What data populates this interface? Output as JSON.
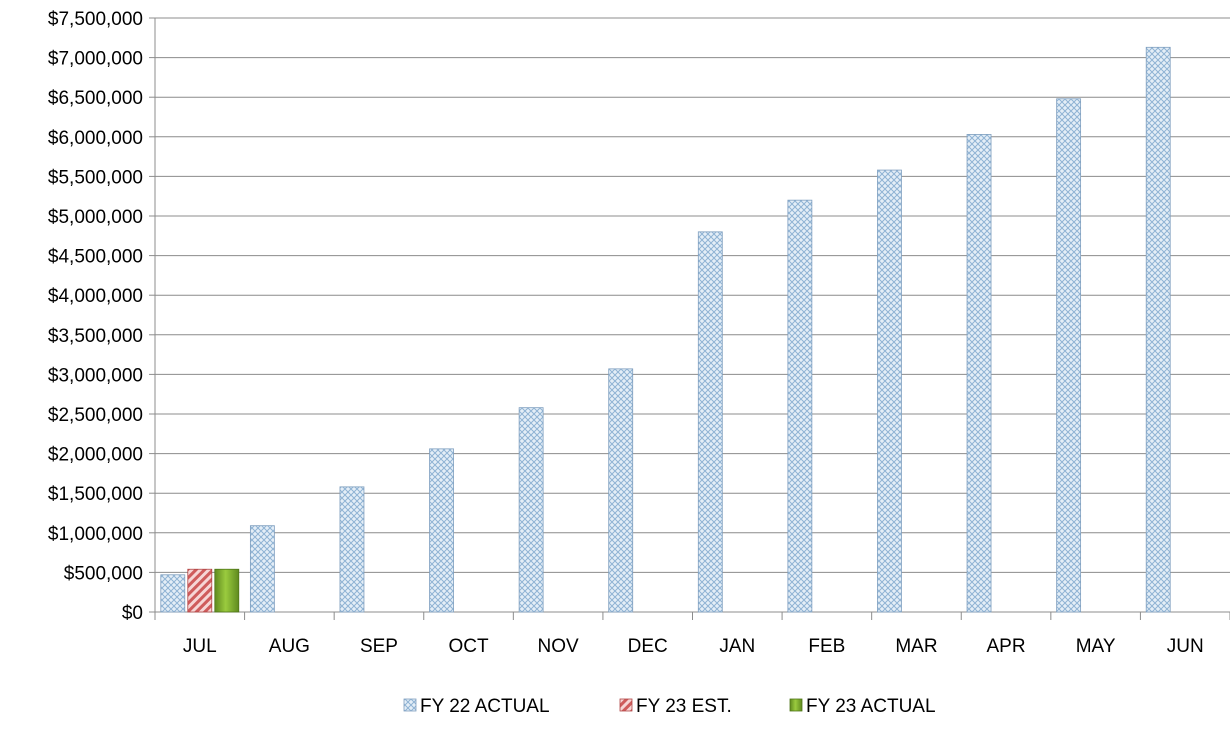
{
  "chart_data": {
    "type": "bar",
    "title": "",
    "xlabel": "",
    "ylabel": "",
    "ylim": [
      0,
      7500000
    ],
    "y_tick_step": 500000,
    "y_ticks": [
      "$0",
      "$500,000",
      "$1,000,000",
      "$1,500,000",
      "$2,000,000",
      "$2,500,000",
      "$3,000,000",
      "$3,500,000",
      "$4,000,000",
      "$4,500,000",
      "$5,000,000",
      "$5,500,000",
      "$6,000,000",
      "$6,500,000",
      "$7,000,000",
      "$7,500,000"
    ],
    "categories": [
      "JUL",
      "AUG",
      "SEP",
      "OCT",
      "NOV",
      "DEC",
      "JAN",
      "FEB",
      "MAR",
      "APR",
      "MAY",
      "JUN"
    ],
    "grid": true,
    "legend_position": "bottom",
    "series": [
      {
        "name": "FY 22 ACTUAL",
        "color": "#c5d9ea",
        "pattern": "crosshatch",
        "values": [
          470000,
          1090000,
          1580000,
          2060000,
          2580000,
          3070000,
          4800000,
          5200000,
          5580000,
          6030000,
          6480000,
          7130000
        ]
      },
      {
        "name": "FY 23 EST.",
        "color": "#d46a6a",
        "pattern": "diagonal",
        "values": [
          540000,
          null,
          null,
          null,
          null,
          null,
          null,
          null,
          null,
          null,
          null,
          null
        ]
      },
      {
        "name": "FY 23 ACTUAL",
        "color": "#7aa62e",
        "pattern": "solid",
        "values": [
          540000,
          null,
          null,
          null,
          null,
          null,
          null,
          null,
          null,
          null,
          null,
          null
        ]
      }
    ]
  }
}
